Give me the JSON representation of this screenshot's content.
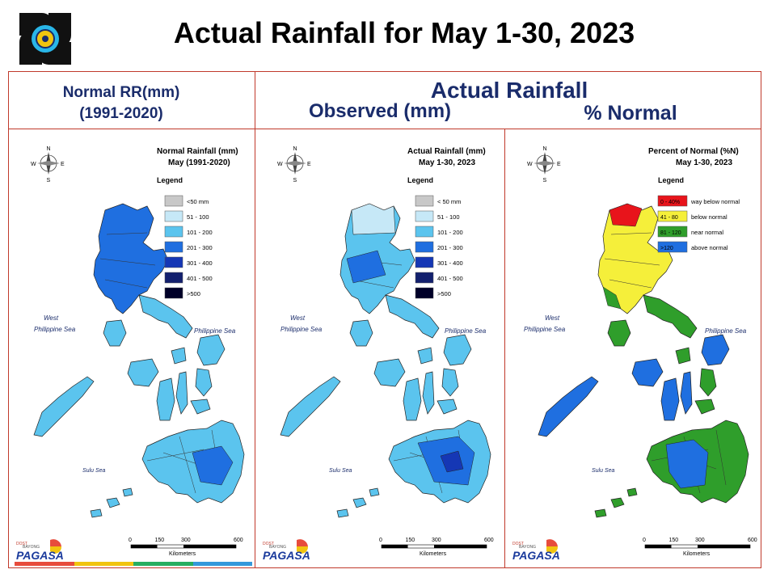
{
  "title": "Actual Rainfall for May 1-30, 2023",
  "headers": {
    "normal_line1": "Normal RR(mm)",
    "normal_line2": "(1991-2020)",
    "actual": "Actual Rainfall",
    "observed": "Observed (mm)",
    "percent": "% Normal"
  },
  "panels": [
    {
      "id": "normal",
      "map_title_1": "Normal Rainfall (mm)",
      "map_title_2": "May (1991-2020)",
      "legend_title": "Legend",
      "legend": [
        {
          "label": "<50 mm",
          "color": "#c8c8c8"
        },
        {
          "label": "51 - 100",
          "color": "#c6e8f7"
        },
        {
          "label": "101 - 200",
          "color": "#5bc4ee"
        },
        {
          "label": "201 - 300",
          "color": "#1f6fe0"
        },
        {
          "label": "301 - 400",
          "color": "#1537b5"
        },
        {
          "label": "401 - 500",
          "color": "#13206e"
        },
        {
          "label": ">500",
          "color": "#000028"
        }
      ],
      "sea_west": [
        "West",
        "Philippine Sea"
      ],
      "sea_east": "Philippine Sea",
      "sea_south": "Sulu Sea"
    },
    {
      "id": "observed",
      "map_title_1": "Actual Rainfall (mm)",
      "map_title_2": "May 1-30, 2023",
      "legend_title": "Legend",
      "legend": [
        {
          "label": "< 50 mm",
          "color": "#c8c8c8"
        },
        {
          "label": "51 - 100",
          "color": "#c6e8f7"
        },
        {
          "label": "101 - 200",
          "color": "#5bc4ee"
        },
        {
          "label": "201 - 300",
          "color": "#1f6fe0"
        },
        {
          "label": "301 - 400",
          "color": "#1537b5"
        },
        {
          "label": "401 - 500",
          "color": "#13206e"
        },
        {
          "label": ">500",
          "color": "#000028"
        }
      ],
      "sea_west": [
        "West",
        "Philippine Sea"
      ],
      "sea_east": "Philippine Sea",
      "sea_south": "Sulu Sea"
    },
    {
      "id": "percent",
      "map_title_1": "Percent of Normal (%N)",
      "map_title_2": "May 1-30, 2023",
      "legend_title": "Legend",
      "legend": [
        {
          "swatch": "0 - 40%",
          "label": "way below normal",
          "color": "#e8141b"
        },
        {
          "swatch": "41 - 80",
          "label": "below normal",
          "color": "#f5ef3a"
        },
        {
          "swatch": "81 - 120",
          "label": "near normal",
          "color": "#2f9e2b"
        },
        {
          "swatch": ">120",
          "label": "above normal",
          "color": "#1f6fe0"
        }
      ],
      "sea_west": [
        "West",
        "Philippine Sea"
      ],
      "sea_east": "Philippine Sea",
      "sea_south": "Sulu Sea"
    }
  ],
  "compass": {
    "n": "N",
    "s": "S",
    "e": "E",
    "w": "W"
  },
  "scale": {
    "ticks": [
      "0",
      "150",
      "300",
      "600"
    ],
    "unit": "Kilometers"
  },
  "pagasa": {
    "dost": "DOST",
    "bayong": "BAYONG",
    "name": "PAGASA"
  },
  "stripe_colors": [
    "#e74c3c",
    "#f1c40f",
    "#27ae60",
    "#3498db"
  ]
}
